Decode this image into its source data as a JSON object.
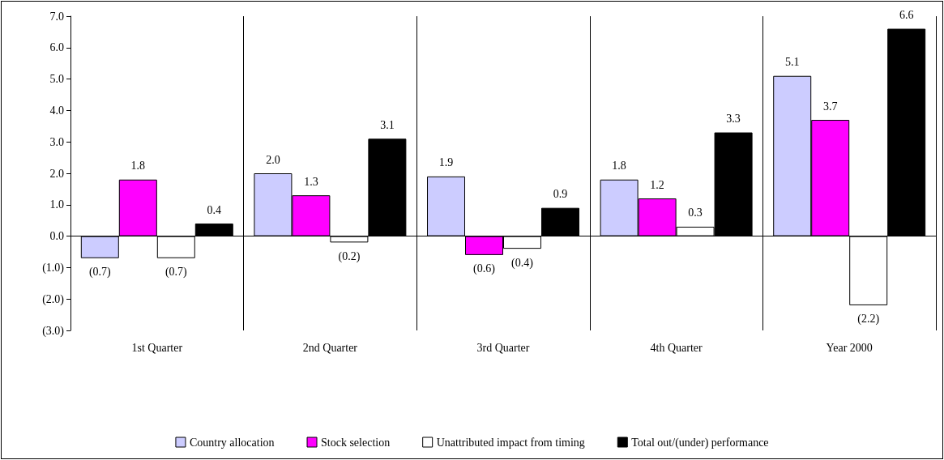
{
  "chart_data": {
    "type": "bar",
    "categories": [
      "1st Quarter",
      "2nd Quarter",
      "3rd Quarter",
      "4th Quarter",
      "Year 2000"
    ],
    "series": [
      {
        "name": "Country allocation",
        "color": "#ccccff",
        "values": [
          -0.7,
          2.0,
          1.9,
          1.8,
          5.1
        ],
        "value_labels": [
          "(0.7)",
          "2.0",
          "1.9",
          "1.8",
          "5.1"
        ]
      },
      {
        "name": "Stock selection",
        "color": "#ff00ff",
        "values": [
          1.8,
          1.3,
          -0.6,
          1.2,
          3.7
        ],
        "value_labels": [
          "1.8",
          "1.3",
          "(0.6)",
          "1.2",
          "3.7"
        ]
      },
      {
        "name": "Unattributed impact from timing",
        "color": "#ffffff",
        "values": [
          -0.7,
          -0.2,
          -0.4,
          0.3,
          -2.2
        ],
        "value_labels": [
          "(0.7)",
          "(0.2)",
          "(0.4)",
          "0.3",
          "(2.2)"
        ]
      },
      {
        "name": "Total out/(under) performance",
        "color": "#000000",
        "values": [
          0.4,
          3.1,
          0.9,
          3.3,
          6.6
        ],
        "value_labels": [
          "0.4",
          "3.1",
          "0.9",
          "3.3",
          "6.6"
        ]
      }
    ],
    "ylim": [
      -3,
      7
    ],
    "yticks": [
      {
        "value": -3,
        "label": "(3.0)"
      },
      {
        "value": -2,
        "label": "(2.0)"
      },
      {
        "value": -1,
        "label": "(1.0)"
      },
      {
        "value": 0,
        "label": "0.0"
      },
      {
        "value": 1,
        "label": "1.0"
      },
      {
        "value": 2,
        "label": "2.0"
      },
      {
        "value": 3,
        "label": "3.0"
      },
      {
        "value": 4,
        "label": "4.0"
      },
      {
        "value": 5,
        "label": "5.0"
      },
      {
        "value": 6,
        "label": "6.0"
      },
      {
        "value": 7,
        "label": "7.0"
      }
    ],
    "ref_lines": [
      {
        "axis": "y",
        "value": 0,
        "color": "#000000"
      }
    ],
    "grid": "x",
    "legend": "bottom"
  }
}
